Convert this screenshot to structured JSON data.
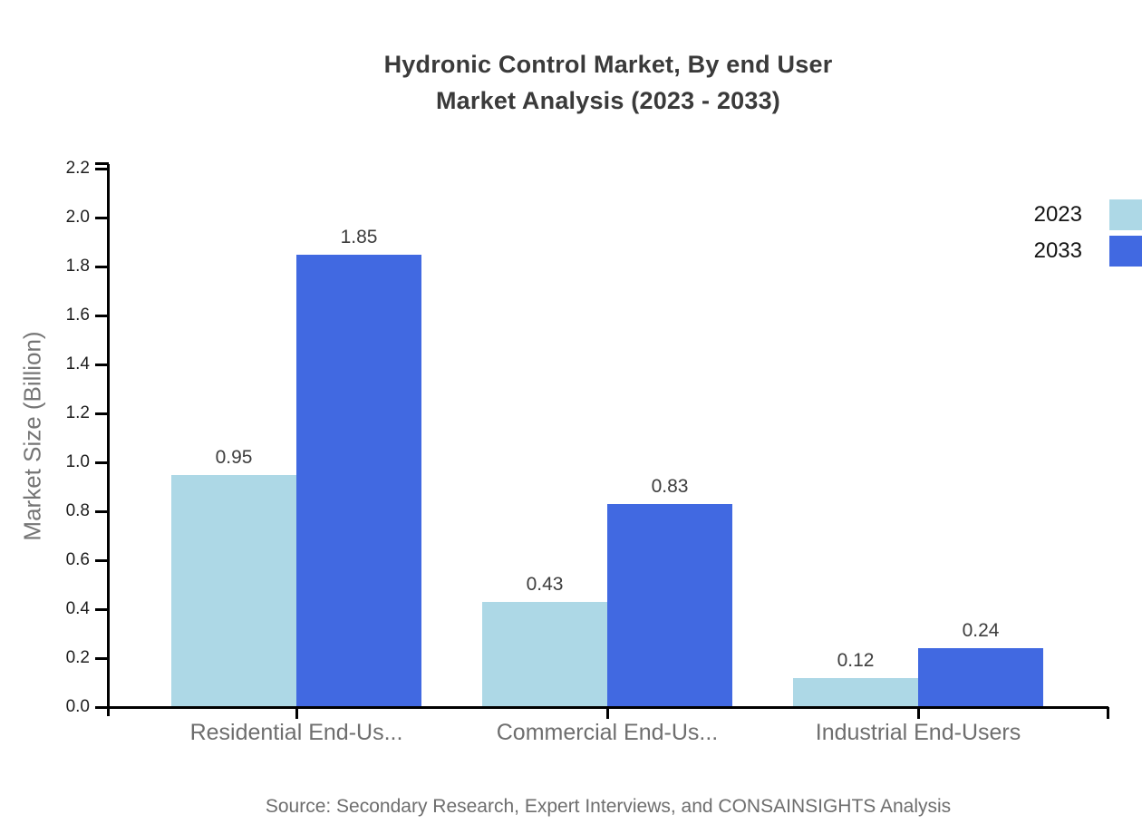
{
  "title": {
    "line1": "Hydronic Control Market, By end User",
    "line2": "Market Analysis (2023 - 2033)"
  },
  "source": "Source: Secondary Research, Expert Interviews, and CONSAINSIGHTS Analysis",
  "legend": {
    "items": [
      {
        "label": "2023",
        "color": "#ADD8E6"
      },
      {
        "label": "2033",
        "color": "#4169E1"
      }
    ]
  },
  "colors": {
    "series_2023": "#ADD8E6",
    "series_2033": "#4169E1",
    "axis_line": "#000000",
    "title_text": "#3a3a3a",
    "tick_label_text": "#1f1f1f",
    "category_label_text": "#6e6e6e",
    "value_label_text": "#3d3d3d",
    "muted_text": "#757575"
  },
  "chart_data": {
    "type": "bar",
    "title": "Hydronic Control Market, By end User Market Analysis (2023 - 2033)",
    "categories": [
      "Residential End-Us...",
      "Commercial End-Us...",
      "Industrial End-Users"
    ],
    "series": [
      {
        "name": "2023",
        "color": "#ADD8E6",
        "values": [
          0.95,
          0.43,
          0.12
        ]
      },
      {
        "name": "2033",
        "color": "#4169E1",
        "values": [
          1.85,
          0.83,
          0.24
        ]
      }
    ],
    "xlabel": "",
    "ylabel": "Market Size (Billion)",
    "ylim": [
      0,
      2.2
    ],
    "ytick_interval": 0.2,
    "ytick_labels": [
      "0.0",
      "0.2",
      "0.4",
      "0.6",
      "0.8",
      "1.0",
      "1.2",
      "1.4",
      "1.6",
      "1.8",
      "2.0",
      "2.2"
    ],
    "grid": false,
    "legend_position": "top-right",
    "value_labels_shown": true,
    "value_label_format": "2-decimals"
  }
}
